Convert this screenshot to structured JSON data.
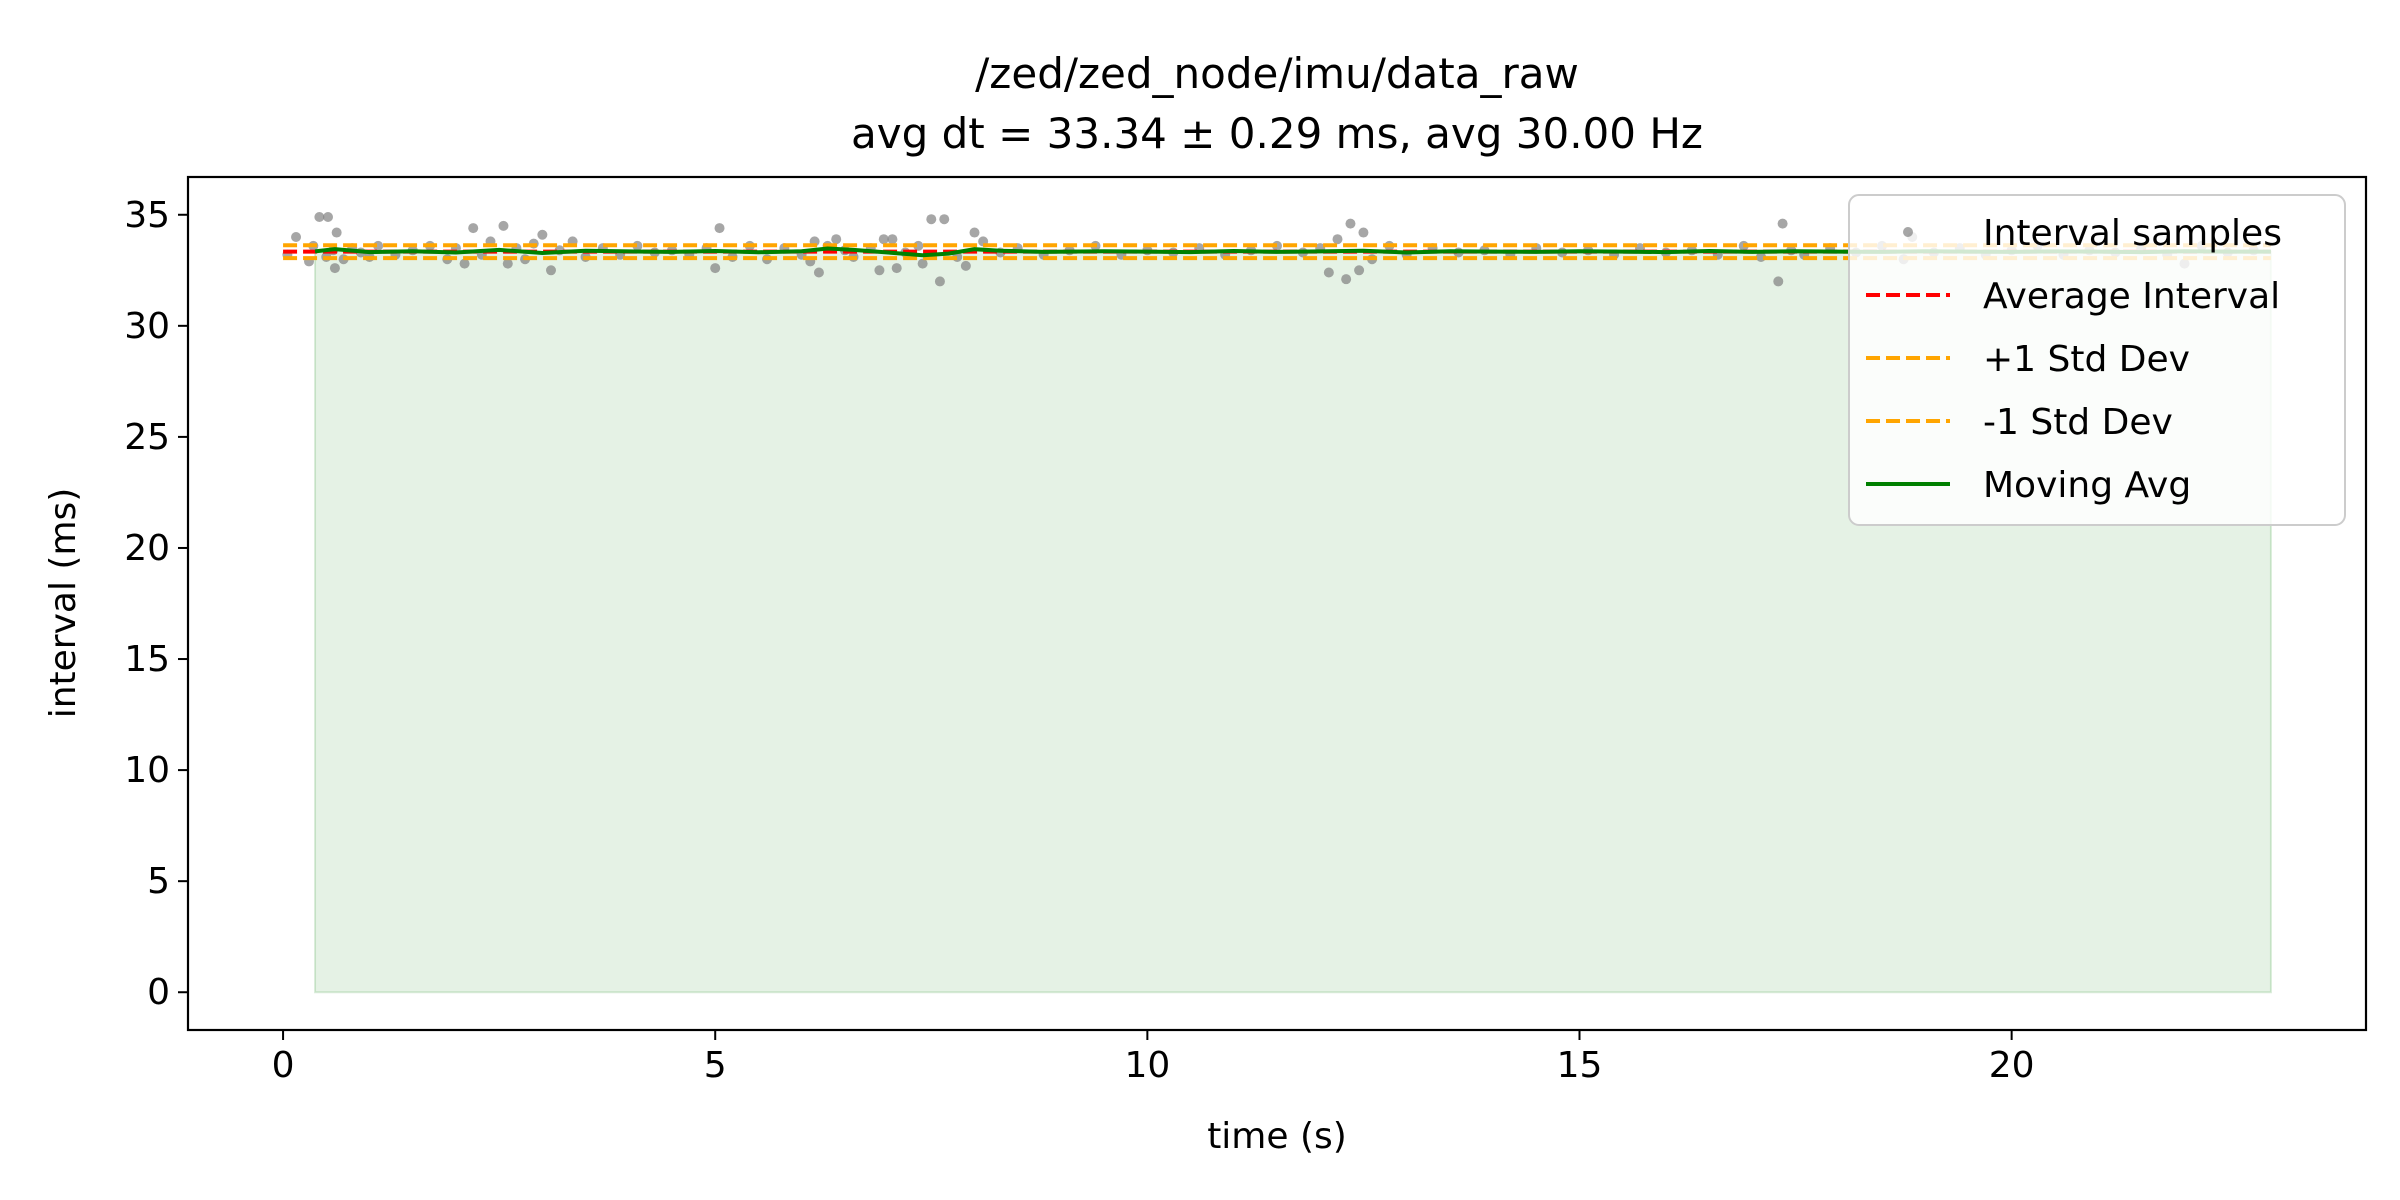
{
  "chart_data": {
    "type": "scatter",
    "title": "/zed/zed_node/imu/data_raw",
    "subtitle": "avg dt = 33.34 ± 0.29 ms, avg 30.00 Hz",
    "xlabel": "time (s)",
    "ylabel": "interval (ms)",
    "xlim": [
      -1.1,
      24.1
    ],
    "ylim": [
      -1.7,
      36.7
    ],
    "xticks": [
      0,
      5,
      10,
      15,
      20
    ],
    "yticks": [
      0,
      5,
      10,
      15,
      20,
      25,
      30,
      35
    ],
    "grid": false,
    "legend_position": "top-right",
    "average": 33.34,
    "std": 0.29,
    "time_range": [
      0.0,
      23.0
    ],
    "moving_avg_start": 0.37,
    "series": [
      {
        "name": "Interval samples",
        "kind": "scatter",
        "color": "#808080",
        "points": [
          [
            0.05,
            33.2
          ],
          [
            0.15,
            34.0
          ],
          [
            0.3,
            32.9
          ],
          [
            0.35,
            33.6
          ],
          [
            0.42,
            34.9
          ],
          [
            0.5,
            33.1
          ],
          [
            0.52,
            34.9
          ],
          [
            0.58,
            33.4
          ],
          [
            0.6,
            32.6
          ],
          [
            0.62,
            34.2
          ],
          [
            0.7,
            33.0
          ],
          [
            0.8,
            33.5
          ],
          [
            0.9,
            33.3
          ],
          [
            1.0,
            33.1
          ],
          [
            1.1,
            33.6
          ],
          [
            1.3,
            33.2
          ],
          [
            1.5,
            33.4
          ],
          [
            1.7,
            33.6
          ],
          [
            1.9,
            33.0
          ],
          [
            2.0,
            33.5
          ],
          [
            2.1,
            32.8
          ],
          [
            2.2,
            34.4
          ],
          [
            2.3,
            33.2
          ],
          [
            2.4,
            33.8
          ],
          [
            2.55,
            34.5
          ],
          [
            2.6,
            32.8
          ],
          [
            2.7,
            33.5
          ],
          [
            2.8,
            33.0
          ],
          [
            2.9,
            33.7
          ],
          [
            3.0,
            34.1
          ],
          [
            3.1,
            32.5
          ],
          [
            3.2,
            33.4
          ],
          [
            3.35,
            33.8
          ],
          [
            3.5,
            33.1
          ],
          [
            3.7,
            33.5
          ],
          [
            3.9,
            33.2
          ],
          [
            4.1,
            33.6
          ],
          [
            4.3,
            33.3
          ],
          [
            4.5,
            33.4
          ],
          [
            4.7,
            33.2
          ],
          [
            4.9,
            33.5
          ],
          [
            5.0,
            32.6
          ],
          [
            5.05,
            34.4
          ],
          [
            5.2,
            33.1
          ],
          [
            5.4,
            33.6
          ],
          [
            5.6,
            33.0
          ],
          [
            5.8,
            33.5
          ],
          [
            6.0,
            33.2
          ],
          [
            6.1,
            32.9
          ],
          [
            6.15,
            33.8
          ],
          [
            6.2,
            32.4
          ],
          [
            6.3,
            33.6
          ],
          [
            6.4,
            33.9
          ],
          [
            6.5,
            33.4
          ],
          [
            6.6,
            33.1
          ],
          [
            6.8,
            33.5
          ],
          [
            6.9,
            32.5
          ],
          [
            6.95,
            33.9
          ],
          [
            7.05,
            33.9
          ],
          [
            7.1,
            32.6
          ],
          [
            7.2,
            33.3
          ],
          [
            7.35,
            33.6
          ],
          [
            7.4,
            32.8
          ],
          [
            7.5,
            34.8
          ],
          [
            7.6,
            32.0
          ],
          [
            7.65,
            34.8
          ],
          [
            7.8,
            33.1
          ],
          [
            7.9,
            32.7
          ],
          [
            8.0,
            34.2
          ],
          [
            8.1,
            33.8
          ],
          [
            8.3,
            33.3
          ],
          [
            8.5,
            33.5
          ],
          [
            8.8,
            33.2
          ],
          [
            9.1,
            33.4
          ],
          [
            9.4,
            33.6
          ],
          [
            9.7,
            33.2
          ],
          [
            10.0,
            33.4
          ],
          [
            10.3,
            33.3
          ],
          [
            10.6,
            33.5
          ],
          [
            10.9,
            33.2
          ],
          [
            11.2,
            33.4
          ],
          [
            11.5,
            33.6
          ],
          [
            11.8,
            33.3
          ],
          [
            12.0,
            33.5
          ],
          [
            12.1,
            32.4
          ],
          [
            12.2,
            33.9
          ],
          [
            12.3,
            32.1
          ],
          [
            12.35,
            34.6
          ],
          [
            12.45,
            32.5
          ],
          [
            12.5,
            34.2
          ],
          [
            12.6,
            33.0
          ],
          [
            12.8,
            33.6
          ],
          [
            13.0,
            33.2
          ],
          [
            13.3,
            33.5
          ],
          [
            13.6,
            33.3
          ],
          [
            13.9,
            33.4
          ],
          [
            14.2,
            33.2
          ],
          [
            14.5,
            33.5
          ],
          [
            14.8,
            33.3
          ],
          [
            15.1,
            33.4
          ],
          [
            15.4,
            33.2
          ],
          [
            15.7,
            33.5
          ],
          [
            16.0,
            33.3
          ],
          [
            16.3,
            33.4
          ],
          [
            16.6,
            33.2
          ],
          [
            16.9,
            33.6
          ],
          [
            17.1,
            33.1
          ],
          [
            17.3,
            32.0
          ],
          [
            17.35,
            34.6
          ],
          [
            17.45,
            33.4
          ],
          [
            17.6,
            33.2
          ],
          [
            17.9,
            33.5
          ],
          [
            18.2,
            33.3
          ],
          [
            18.5,
            33.6
          ],
          [
            18.75,
            33.0
          ],
          [
            18.85,
            34.0
          ],
          [
            19.1,
            33.3
          ],
          [
            19.4,
            33.5
          ],
          [
            19.7,
            33.2
          ],
          [
            20.0,
            33.4
          ],
          [
            20.3,
            33.6
          ],
          [
            20.6,
            33.2
          ],
          [
            20.9,
            33.4
          ],
          [
            21.2,
            33.3
          ],
          [
            21.5,
            33.5
          ],
          [
            21.8,
            33.2
          ],
          [
            22.0,
            32.8
          ],
          [
            22.2,
            33.6
          ],
          [
            22.5,
            33.3
          ],
          [
            22.8,
            33.4
          ]
        ]
      },
      {
        "name": "Average Interval",
        "kind": "hline",
        "color": "#ff0000",
        "value": 33.34,
        "dash": true
      },
      {
        "name": "+1 Std Dev",
        "kind": "hline",
        "color": "#ffa500",
        "value": 33.63,
        "dash": true
      },
      {
        "name": "-1 Std Dev",
        "kind": "hline",
        "color": "#ffa500",
        "value": 33.05,
        "dash": true
      },
      {
        "name": "Moving Avg",
        "kind": "line",
        "color": "#008000",
        "points": [
          [
            0.37,
            33.35
          ],
          [
            0.6,
            33.45
          ],
          [
            1.0,
            33.32
          ],
          [
            1.5,
            33.36
          ],
          [
            2.0,
            33.3
          ],
          [
            2.5,
            33.42
          ],
          [
            3.0,
            33.28
          ],
          [
            3.5,
            33.38
          ],
          [
            4.0,
            33.35
          ],
          [
            4.5,
            33.33
          ],
          [
            5.0,
            33.37
          ],
          [
            5.5,
            33.31
          ],
          [
            6.0,
            33.36
          ],
          [
            6.3,
            33.48
          ],
          [
            6.6,
            33.42
          ],
          [
            7.0,
            33.3
          ],
          [
            7.4,
            33.18
          ],
          [
            7.7,
            33.25
          ],
          [
            8.0,
            33.45
          ],
          [
            8.3,
            33.38
          ],
          [
            8.8,
            33.33
          ],
          [
            9.5,
            33.36
          ],
          [
            10.0,
            33.34
          ],
          [
            10.5,
            33.32
          ],
          [
            11.0,
            33.37
          ],
          [
            11.5,
            33.33
          ],
          [
            12.0,
            33.35
          ],
          [
            12.5,
            33.38
          ],
          [
            13.0,
            33.3
          ],
          [
            13.5,
            33.36
          ],
          [
            14.0,
            33.34
          ],
          [
            14.5,
            33.33
          ],
          [
            15.0,
            33.36
          ],
          [
            15.5,
            33.34
          ],
          [
            16.0,
            33.32
          ],
          [
            16.5,
            33.37
          ],
          [
            17.0,
            33.33
          ],
          [
            17.5,
            33.36
          ],
          [
            18.0,
            33.34
          ],
          [
            18.5,
            33.33
          ],
          [
            19.0,
            33.36
          ],
          [
            19.5,
            33.34
          ],
          [
            20.0,
            33.33
          ],
          [
            20.5,
            33.35
          ],
          [
            21.0,
            33.34
          ],
          [
            21.5,
            33.32
          ],
          [
            22.0,
            33.36
          ],
          [
            22.5,
            33.34
          ],
          [
            23.0,
            33.34
          ]
        ]
      }
    ]
  }
}
